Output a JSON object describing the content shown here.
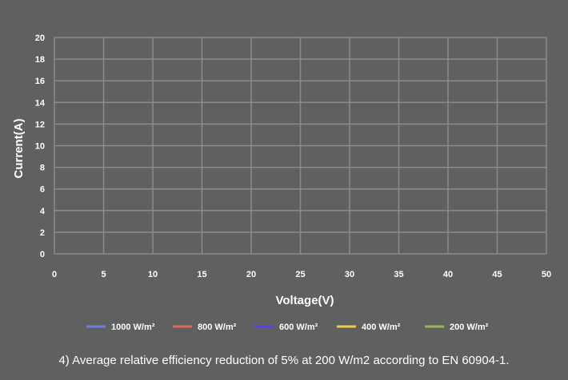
{
  "chart_data": {
    "type": "line",
    "xlabel": "Voltage(V)",
    "ylabel": "Current(A)",
    "xlim": [
      0,
      50
    ],
    "ylim": [
      0,
      20
    ],
    "x_ticks": [
      0,
      5,
      10,
      15,
      20,
      25,
      30,
      35,
      40,
      45,
      50
    ],
    "y_ticks": [
      0,
      2,
      4,
      6,
      8,
      10,
      12,
      14,
      16,
      18,
      20
    ],
    "grid": true,
    "legend_position": "bottom",
    "series": [
      {
        "name": "1000 W/m²",
        "color": "#6b7de0",
        "values": []
      },
      {
        "name": "800 W/m²",
        "color": "#e0675f",
        "values": []
      },
      {
        "name": "600 W/m²",
        "color": "#5b3fe0",
        "values": []
      },
      {
        "name": "400 W/m²",
        "color": "#f0c94a",
        "values": []
      },
      {
        "name": "200 W/m²",
        "color": "#9cb552",
        "values": []
      }
    ]
  },
  "footnote": "4) Average relative efficiency reduction of 5% at 200 W/m2 according to EN 60904-1."
}
